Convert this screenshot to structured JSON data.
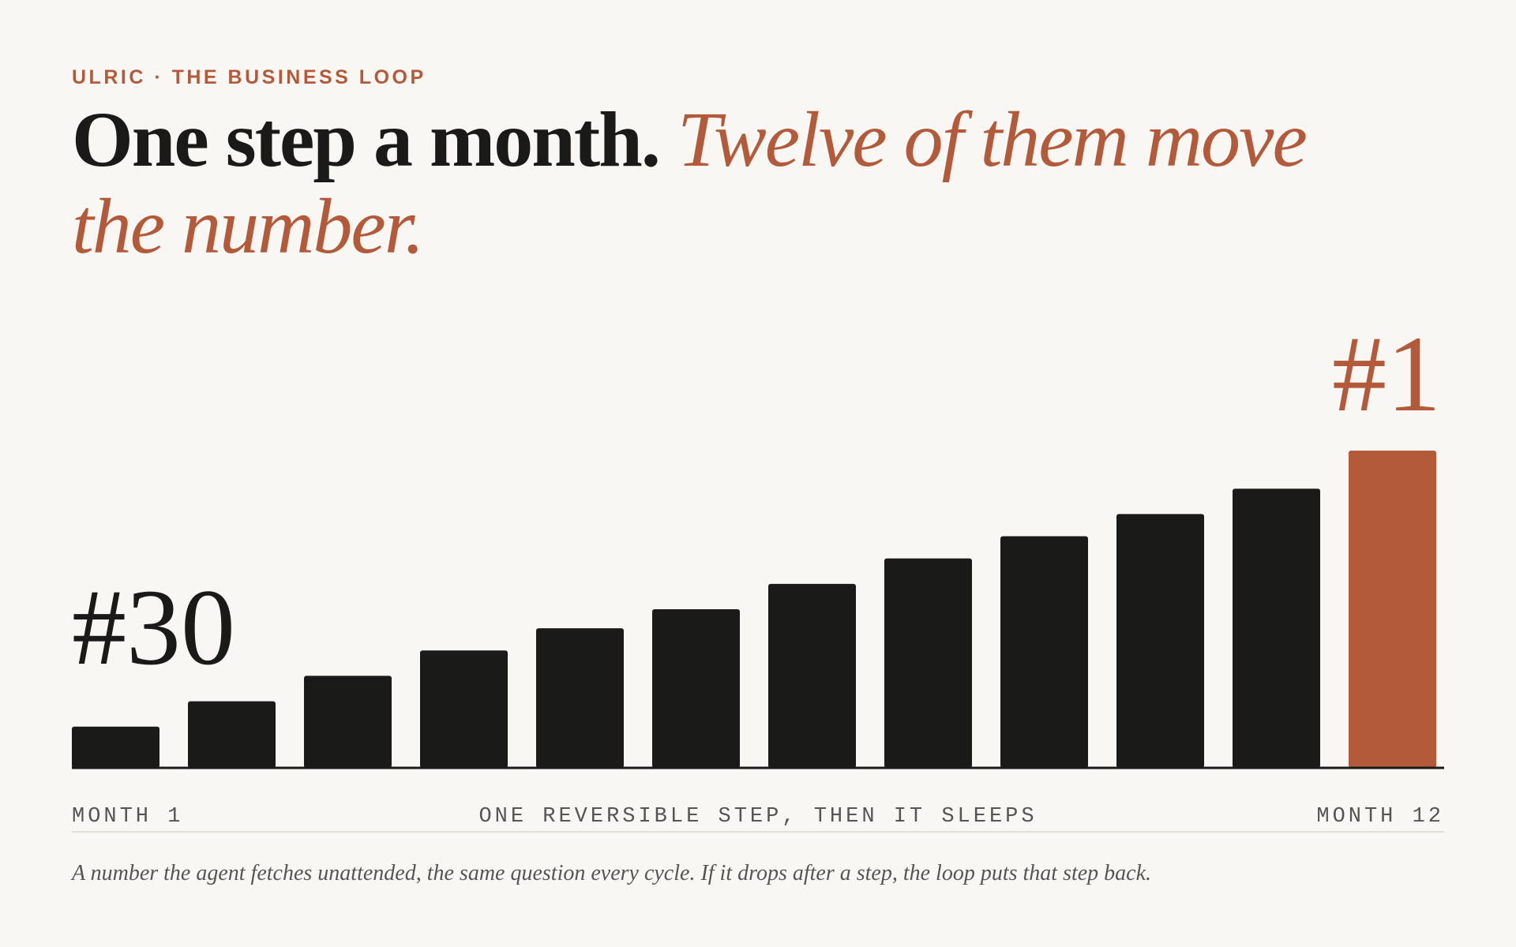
{
  "kicker": "ULRIC · THE BUSINESS LOOP",
  "headline": {
    "plain": "One step a month.",
    "emphasis": "Twelve of them move the number."
  },
  "chart_data": {
    "type": "bar",
    "categories": [
      "MONTH 1",
      null,
      null,
      null,
      null,
      null,
      null,
      null,
      null,
      null,
      null,
      "MONTH 12"
    ],
    "values": [
      13,
      21,
      29,
      37,
      44,
      50,
      58,
      66,
      73,
      80,
      88,
      100
    ],
    "colors": [
      "#1a1a18",
      "#1a1a18",
      "#1a1a18",
      "#1a1a18",
      "#1a1a18",
      "#1a1a18",
      "#1a1a18",
      "#1a1a18",
      "#1a1a18",
      "#1a1a18",
      "#1a1a18",
      "#b35a3a"
    ],
    "ylim": [
      0,
      100
    ],
    "start_annotation": "#30",
    "end_annotation": "#1",
    "x_axis_label": "ONE REVERSIBLE STEP, THEN IT SLEEPS"
  },
  "caption": "A number the agent fetches unattended, the same question every cycle. If it drops after a step, the loop puts that step back."
}
